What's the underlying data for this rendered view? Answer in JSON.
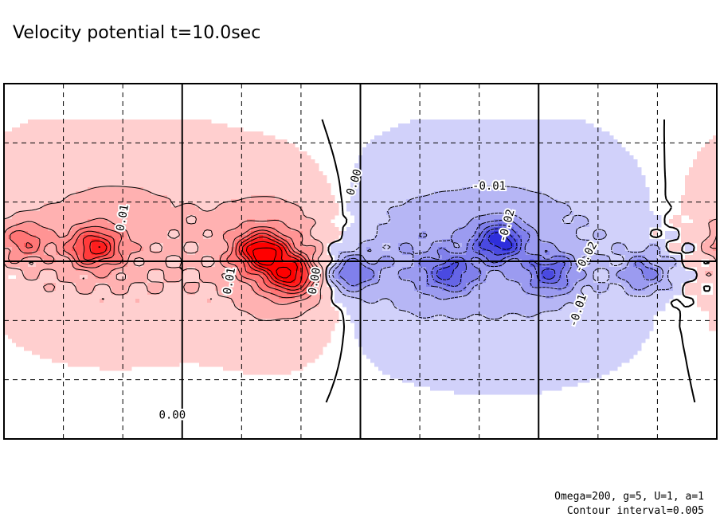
{
  "chart_data": {
    "type": "contour",
    "title": "Velocity potential t=10.0sec",
    "variable": "Velocity potential",
    "time": "t=10.0sec",
    "parameters": "Omega=200, g=5, U=1, a=1",
    "contour_interval_text": "Contour interval=0.005",
    "contour_interval": 0.005,
    "xlim": [
      0,
      360
    ],
    "ylim": [
      -90,
      90
    ],
    "grid": true,
    "x_gridlines": [
      30,
      60,
      120,
      150,
      210,
      240,
      300,
      330
    ],
    "x_major_lines": [
      90,
      180,
      270
    ],
    "y_gridlines": [
      -60,
      -30,
      30,
      60
    ],
    "equator": 0,
    "contour_labels": [
      {
        "text": "0.00",
        "lon": 85,
        "lat": -78
      },
      {
        "text": "0.00",
        "lon": 177,
        "lat": 40,
        "angle": -72
      },
      {
        "text": "-0.01",
        "lon": 245,
        "lat": 38
      },
      {
        "text": "-0.02",
        "lon": 254,
        "lat": 18,
        "angle": -75
      },
      {
        "text": "-0.01",
        "lon": 290,
        "lat": -25,
        "angle": -72
      },
      {
        "text": "-0.02",
        "lon": 294,
        "lat": 2,
        "angle": -60
      },
      {
        "text": "0.01",
        "lon": 60,
        "lat": 22,
        "angle": -80
      },
      {
        "text": "0.01",
        "lon": 114,
        "lat": -10,
        "angle": -80
      },
      {
        "text": "0.00",
        "lon": 157,
        "lat": -10,
        "angle": -80
      }
    ],
    "features": [
      {
        "sign": "positive",
        "lon": 46,
        "lat": 7,
        "peak": 0.035
      },
      {
        "sign": "positive",
        "lon": 130,
        "lat": 5,
        "peak": 0.045
      },
      {
        "sign": "positive",
        "lon": 145,
        "lat": -7,
        "peak": 0.04
      },
      {
        "sign": "positive",
        "lon": 10,
        "lat": 10,
        "peak": 0.02
      },
      {
        "sign": "negative",
        "lon": 175,
        "lat": -6,
        "peak": -0.025
      },
      {
        "sign": "negative",
        "lon": 250,
        "lat": 10,
        "peak": -0.035
      },
      {
        "sign": "negative",
        "lon": 225,
        "lat": -6,
        "peak": -0.025
      },
      {
        "sign": "negative",
        "lon": 276,
        "lat": -6,
        "peak": -0.025
      },
      {
        "sign": "negative",
        "lon": 324,
        "lat": -6,
        "peak": -0.02
      }
    ],
    "colors": {
      "positive": "#e00000",
      "negative": "#1414d8",
      "axis": "#000000"
    }
  }
}
